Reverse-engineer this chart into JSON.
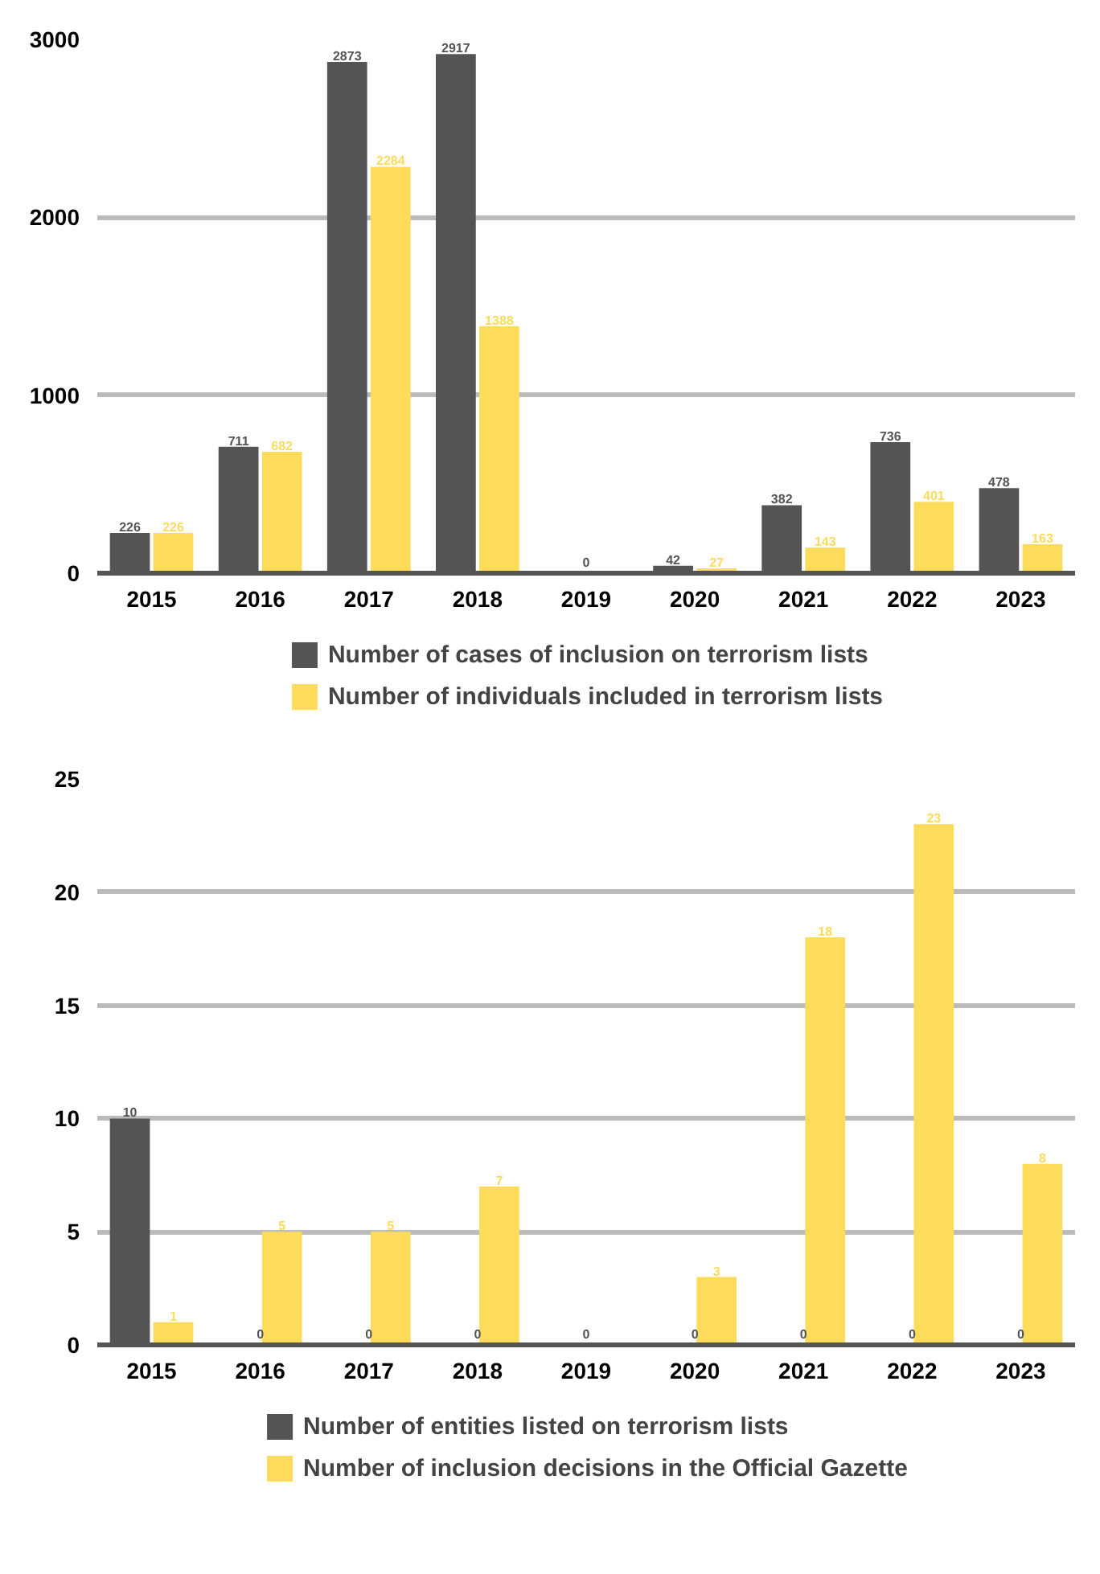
{
  "chart_data": [
    {
      "type": "bar",
      "categories": [
        "2015",
        "2016",
        "2017",
        "2018",
        "2019",
        "2020",
        "2021",
        "2022",
        "2023"
      ],
      "series": [
        {
          "name": "Number of cases of inclusion on terrorism lists",
          "color": "#545454",
          "values": [
            226,
            711,
            2873,
            2917,
            0,
            42,
            382,
            736,
            478
          ],
          "value_labels": [
            "226",
            "711",
            "2873",
            "2917",
            "0",
            "42",
            "382",
            "736",
            "478"
          ]
        },
        {
          "name": "Number of individuals included in terrorism lists",
          "color": "#fddc5c",
          "values": [
            226,
            682,
            2284,
            1388,
            null,
            27,
            143,
            401,
            163
          ],
          "value_labels": [
            "226",
            "682",
            "2284",
            "1388",
            null,
            "27",
            "143",
            "401",
            "163"
          ]
        }
      ],
      "ylim": [
        0,
        3000
      ],
      "yticks": [
        0,
        1000,
        2000,
        3000
      ],
      "grid": "y",
      "legend": "bottom"
    },
    {
      "type": "bar",
      "categories": [
        "2015",
        "2016",
        "2017",
        "2018",
        "2019",
        "2020",
        "2021",
        "2022",
        "2023"
      ],
      "series": [
        {
          "name": "Number of entities listed on terrorism lists",
          "color": "#545454",
          "values": [
            10,
            0,
            0,
            0,
            0,
            0,
            0,
            0,
            0
          ],
          "value_labels": [
            "10",
            "0",
            "0",
            "0",
            "0",
            "0",
            "0",
            "0",
            "0"
          ]
        },
        {
          "name": "Number of inclusion decisions in the Official Gazette",
          "color": "#fddc5c",
          "values": [
            1,
            5,
            5,
            7,
            null,
            3,
            18,
            23,
            8
          ],
          "value_labels": [
            "1",
            "5",
            "5",
            "7",
            null,
            "3",
            "18",
            "23",
            "8"
          ]
        }
      ],
      "ylim": [
        0,
        25
      ],
      "yticks": [
        0,
        5,
        10,
        15,
        20,
        25
      ],
      "grid": "y",
      "legend": "bottom"
    }
  ]
}
